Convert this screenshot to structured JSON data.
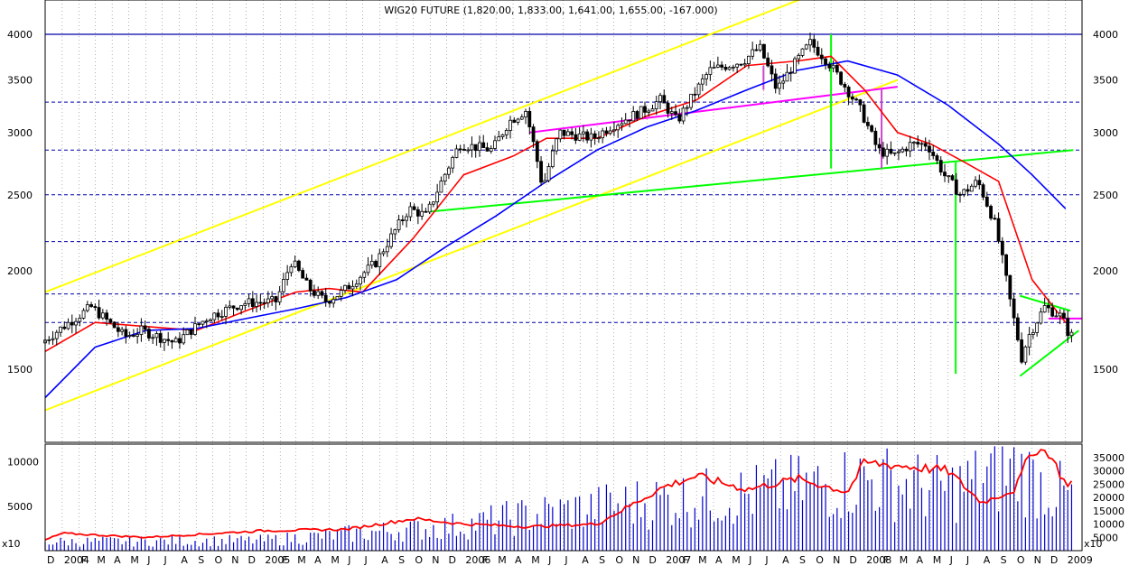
{
  "chart_data": [
    {
      "type": "candlestick",
      "title": "WIG20 FUTURE (1,820.00, 1,833.00, 1,641.00, 1,655.00, -167.000)",
      "x_range": [
        "2003-12-01",
        "2009-01-31"
      ],
      "y_scale": "log",
      "ylim": [
        1300,
        4500
      ],
      "y_ticks": [
        1500,
        2000,
        2500,
        3000,
        3500,
        4000
      ],
      "grid": "dotted",
      "anchor_points": [
        [
          "2003-12-01",
          1620
        ],
        [
          "2004-03-01",
          1800
        ],
        [
          "2004-05-01",
          1650
        ],
        [
          "2004-06-01",
          1680
        ],
        [
          "2004-08-01",
          1620
        ],
        [
          "2004-10-01",
          1750
        ],
        [
          "2004-12-01",
          1820
        ],
        [
          "2005-02-01",
          1830
        ],
        [
          "2005-03-01",
          2060
        ],
        [
          "2005-04-01",
          1900
        ],
        [
          "2005-05-01",
          1830
        ],
        [
          "2005-06-01",
          1880
        ],
        [
          "2005-08-01",
          2050
        ],
        [
          "2005-10-01",
          2400
        ],
        [
          "2005-11-01",
          2350
        ],
        [
          "2006-01-01",
          2900
        ],
        [
          "2006-03-01",
          2850
        ],
        [
          "2006-04-01",
          3100
        ],
        [
          "2006-05-01",
          3200
        ],
        [
          "2006-06-01",
          2550
        ],
        [
          "2006-07-01",
          3000
        ],
        [
          "2006-09-01",
          2950
        ],
        [
          "2006-10-01",
          3050
        ],
        [
          "2006-12-01",
          3200
        ],
        [
          "2007-01-01",
          3300
        ],
        [
          "2007-02-01",
          3100
        ],
        [
          "2007-04-01",
          3600
        ],
        [
          "2007-06-01",
          3700
        ],
        [
          "2007-07-01",
          3850
        ],
        [
          "2007-08-01",
          3400
        ],
        [
          "2007-10-01",
          3900
        ],
        [
          "2007-11-01",
          3700
        ],
        [
          "2008-01-01",
          3200
        ],
        [
          "2008-02-01",
          2850
        ],
        [
          "2008-03-01",
          2800
        ],
        [
          "2008-04-01",
          2900
        ],
        [
          "2008-05-01",
          2900
        ],
        [
          "2008-06-01",
          2650
        ],
        [
          "2008-07-01",
          2500
        ],
        [
          "2008-08-01",
          2600
        ],
        [
          "2008-09-01",
          2300
        ],
        [
          "2008-10-01",
          1800
        ],
        [
          "2008-10-20",
          1550
        ],
        [
          "2008-11-01",
          1650
        ],
        [
          "2008-12-01",
          1800
        ],
        [
          "2009-01-01",
          1750
        ],
        [
          "2009-01-15",
          1655
        ]
      ],
      "moving_averages": [
        {
          "color": "#ff0000",
          "points": [
            [
              "2003-12-01",
              1580
            ],
            [
              "2004-03-01",
              1720
            ],
            [
              "2004-06-01",
              1700
            ],
            [
              "2004-09-01",
              1680
            ],
            [
              "2004-12-01",
              1780
            ],
            [
              "2005-03-01",
              1880
            ],
            [
              "2005-05-01",
              1900
            ],
            [
              "2005-07-01",
              1880
            ],
            [
              "2005-10-01",
              2200
            ],
            [
              "2006-01-01",
              2650
            ],
            [
              "2006-04-01",
              2800
            ],
            [
              "2006-06-01",
              2950
            ],
            [
              "2006-09-01",
              2950
            ],
            [
              "2006-12-01",
              3150
            ],
            [
              "2007-03-01",
              3300
            ],
            [
              "2007-06-01",
              3650
            ],
            [
              "2007-09-01",
              3700
            ],
            [
              "2007-11-01",
              3750
            ],
            [
              "2008-01-01",
              3400
            ],
            [
              "2008-03-01",
              3000
            ],
            [
              "2008-05-01",
              2900
            ],
            [
              "2008-07-01",
              2750
            ],
            [
              "2008-09-01",
              2600
            ],
            [
              "2008-11-01",
              1950
            ],
            [
              "2009-01-01",
              1720
            ]
          ]
        },
        {
          "color": "#0000ff",
          "points": [
            [
              "2003-12-01",
              1380
            ],
            [
              "2004-03-01",
              1600
            ],
            [
              "2004-06-01",
              1680
            ],
            [
              "2004-09-01",
              1690
            ],
            [
              "2004-12-01",
              1740
            ],
            [
              "2005-03-01",
              1790
            ],
            [
              "2005-06-01",
              1850
            ],
            [
              "2005-09-01",
              1950
            ],
            [
              "2005-12-01",
              2150
            ],
            [
              "2006-03-01",
              2350
            ],
            [
              "2006-06-01",
              2600
            ],
            [
              "2006-09-01",
              2850
            ],
            [
              "2006-12-01",
              3050
            ],
            [
              "2007-03-01",
              3200
            ],
            [
              "2007-06-01",
              3400
            ],
            [
              "2007-09-01",
              3600
            ],
            [
              "2007-12-01",
              3700
            ],
            [
              "2008-03-01",
              3550
            ],
            [
              "2008-06-01",
              3250
            ],
            [
              "2008-09-01",
              2900
            ],
            [
              "2008-11-01",
              2650
            ],
            [
              "2009-01-01",
              2400
            ]
          ]
        }
      ],
      "trend_lines": [
        {
          "color": "#ffff00",
          "from": [
            "2003-12-01",
            1880
          ],
          "to": [
            "2007-10-01",
            4500
          ]
        },
        {
          "color": "#ffff00",
          "from": [
            "2003-12-01",
            1330
          ],
          "to": [
            "2008-03-01",
            3500
          ]
        },
        {
          "color": "#00ff00",
          "from": [
            "2005-11-01",
            2380
          ],
          "to": [
            "2009-01-15",
            2850
          ]
        },
        {
          "color": "#ff00ff",
          "from": [
            "2006-05-01",
            3000
          ],
          "to": [
            "2008-03-01",
            3430
          ]
        },
        {
          "color": "#ff00ff",
          "from": [
            "2008-12-01",
            1740
          ],
          "to": [
            "2009-01-31",
            1740
          ]
        },
        {
          "color": "#00ff00",
          "from": [
            "2008-10-10",
            1860
          ],
          "to": [
            "2009-01-10",
            1780
          ]
        },
        {
          "color": "#00ff00",
          "from": [
            "2008-10-10",
            1470
          ],
          "to": [
            "2009-01-25",
            1680
          ]
        },
        {
          "color": "#00ff00",
          "from": [
            "2007-11-01",
            2700
          ],
          "to": [
            "2007-11-01",
            4000
          ]
        },
        {
          "color": "#00ff00",
          "from": [
            "2008-06-15",
            1480
          ],
          "to": [
            "2008-06-15",
            2750
          ]
        },
        {
          "color": "#cc44cc",
          "from": [
            "2007-07-01",
            3650
          ],
          "to": [
            "2007-07-01",
            3400
          ]
        },
        {
          "color": "#cc44cc",
          "from": [
            "2008-02-01",
            3400
          ],
          "to": [
            "2008-02-01",
            2700
          ]
        }
      ],
      "reference_lines": [
        {
          "y": 4000,
          "style": "solid"
        },
        {
          "y": 3280,
          "style": "dashed"
        },
        {
          "y": 2850,
          "style": "dashed"
        },
        {
          "y": 2500,
          "style": "dashed"
        },
        {
          "y": 2180,
          "style": "dashed"
        },
        {
          "y": 1870,
          "style": "dashed"
        },
        {
          "y": 1720,
          "style": "dashed"
        }
      ]
    },
    {
      "type": "bar",
      "series": "volume",
      "left_ticks": [
        5000,
        10000
      ],
      "left_multiplier": "x10",
      "right_ticks": [
        5000,
        10000,
        15000,
        20000,
        25000,
        30000,
        35000
      ],
      "right_multiplier": "x10",
      "right_ylim": [
        0,
        40000
      ]
    }
  ],
  "x_axis": {
    "labels": [
      {
        "t": "2003-12",
        "text": "D"
      },
      {
        "t": "2004-01",
        "text": "2004"
      },
      {
        "t": "2004-02",
        "text": "F"
      },
      {
        "t": "2004-03",
        "text": "M"
      },
      {
        "t": "2004-04",
        "text": "A"
      },
      {
        "t": "2004-05",
        "text": "M"
      },
      {
        "t": "2004-06",
        "text": "J"
      },
      {
        "t": "2004-07",
        "text": "J"
      },
      {
        "t": "2004-08",
        "text": "A"
      },
      {
        "t": "2004-09",
        "text": "S"
      },
      {
        "t": "2004-10",
        "text": "O"
      },
      {
        "t": "2004-11",
        "text": "N"
      },
      {
        "t": "2004-12",
        "text": "D"
      },
      {
        "t": "2005-01",
        "text": "2005"
      },
      {
        "t": "2005-02",
        "text": "F"
      },
      {
        "t": "2005-03",
        "text": "M"
      },
      {
        "t": "2005-04",
        "text": "A"
      },
      {
        "t": "2005-05",
        "text": "M"
      },
      {
        "t": "2005-06",
        "text": "J"
      },
      {
        "t": "2005-07",
        "text": "J"
      },
      {
        "t": "2005-08",
        "text": "A"
      },
      {
        "t": "2005-09",
        "text": "S"
      },
      {
        "t": "2005-10",
        "text": "O"
      },
      {
        "t": "2005-11",
        "text": "N"
      },
      {
        "t": "2005-12",
        "text": "D"
      },
      {
        "t": "2006-01",
        "text": "2006"
      },
      {
        "t": "2006-02",
        "text": "F"
      },
      {
        "t": "2006-03",
        "text": "M"
      },
      {
        "t": "2006-04",
        "text": "A"
      },
      {
        "t": "2006-05",
        "text": "M"
      },
      {
        "t": "2006-06",
        "text": "J"
      },
      {
        "t": "2006-07",
        "text": "J"
      },
      {
        "t": "2006-08",
        "text": "A"
      },
      {
        "t": "2006-09",
        "text": "S"
      },
      {
        "t": "2006-10",
        "text": "O"
      },
      {
        "t": "2006-11",
        "text": "N"
      },
      {
        "t": "2006-12",
        "text": "D"
      },
      {
        "t": "2007-01",
        "text": "2007"
      },
      {
        "t": "2007-02",
        "text": "F"
      },
      {
        "t": "2007-03",
        "text": "M"
      },
      {
        "t": "2007-04",
        "text": "A"
      },
      {
        "t": "2007-05",
        "text": "M"
      },
      {
        "t": "2007-06",
        "text": "J"
      },
      {
        "t": "2007-07",
        "text": "J"
      },
      {
        "t": "2007-08",
        "text": "A"
      },
      {
        "t": "2007-09",
        "text": "S"
      },
      {
        "t": "2007-10",
        "text": "O"
      },
      {
        "t": "2007-11",
        "text": "N"
      },
      {
        "t": "2007-12",
        "text": "D"
      },
      {
        "t": "2008-01",
        "text": "2008"
      },
      {
        "t": "2008-02",
        "text": "F"
      },
      {
        "t": "2008-03",
        "text": "M"
      },
      {
        "t": "2008-04",
        "text": "A"
      },
      {
        "t": "2008-05",
        "text": "M"
      },
      {
        "t": "2008-06",
        "text": "J"
      },
      {
        "t": "2008-07",
        "text": "J"
      },
      {
        "t": "2008-08",
        "text": "A"
      },
      {
        "t": "2008-09",
        "text": "S"
      },
      {
        "t": "2008-10",
        "text": "O"
      },
      {
        "t": "2008-11",
        "text": "N"
      },
      {
        "t": "2008-12",
        "text": "D"
      },
      {
        "t": "2009-01",
        "text": "2009"
      }
    ]
  },
  "colors": {
    "grid": "#808080",
    "reference": "#0000aa",
    "candles": "#000000",
    "volume_bars": "#0000cc",
    "volume_line": "#ff0000"
  }
}
